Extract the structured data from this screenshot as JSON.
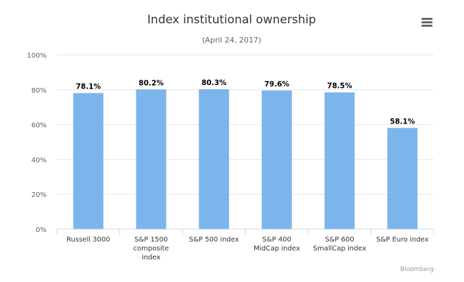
{
  "chart_data": {
    "type": "bar",
    "title": "Index institutional ownership",
    "subtitle": "(April 24, 2017)",
    "categories": [
      [
        "Russell 3000"
      ],
      [
        "S&P 1500",
        "composite",
        "index"
      ],
      [
        "S&P 500 index"
      ],
      [
        "S&P 400",
        "MidCap index"
      ],
      [
        "S&P 600",
        "SmallCap index"
      ],
      [
        "S&P Euro index"
      ]
    ],
    "values": [
      78.1,
      80.2,
      80.3,
      79.6,
      78.5,
      58.1
    ],
    "data_labels": [
      "78.1%",
      "80.2%",
      "80.3%",
      "79.6%",
      "78.5%",
      "58.1%"
    ],
    "yticks": [
      0,
      20,
      40,
      60,
      80,
      100
    ],
    "ytick_labels": [
      "0%",
      "20%",
      "40%",
      "60%",
      "80%",
      "100%"
    ],
    "ylim": [
      0,
      100
    ],
    "xlabel": "",
    "ylabel": "",
    "grid": true,
    "legend": "none",
    "bar_color": "#7cb5ec",
    "credit": "Bloomberg"
  },
  "menu_icon": "hamburger-menu-icon"
}
